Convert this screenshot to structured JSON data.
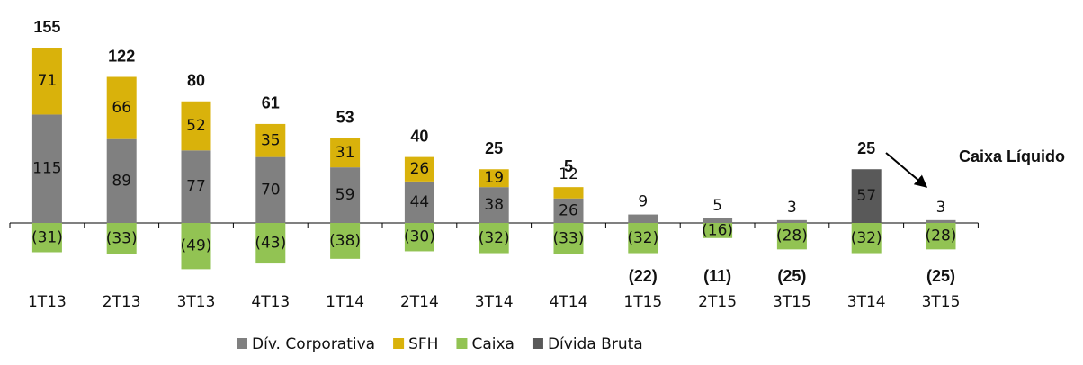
{
  "chart_data": {
    "type": "stacked_bar",
    "categories": [
      "1T13",
      "2T13",
      "3T13",
      "4T13",
      "1T14",
      "2T14",
      "3T14",
      "4T14",
      "1T15",
      "2T15",
      "3T15",
      "3T14",
      "3T15"
    ],
    "series": [
      {
        "name": "Dív. Corporativa",
        "color": "#808080",
        "values": [
          115,
          89,
          77,
          70,
          59,
          44,
          38,
          26,
          9,
          5,
          3,
          null,
          3
        ]
      },
      {
        "name": "SFH",
        "color": "#d9b20b",
        "values": [
          71,
          66,
          52,
          35,
          31,
          26,
          19,
          12,
          null,
          null,
          null,
          null,
          null
        ]
      },
      {
        "name": "Caixa",
        "color": "#92c353",
        "values": [
          -31,
          -33,
          -49,
          -43,
          -38,
          -30,
          -32,
          -33,
          -32,
          -16,
          -28,
          -32,
          -28
        ],
        "value_labels": [
          "(31)",
          "(33)",
          "(49)",
          "(43)",
          "(38)",
          "(30)",
          "(32)",
          "(33)",
          "(32)",
          "(16)",
          "(28)",
          "(32)",
          "(28)"
        ]
      },
      {
        "name": "Dívida Bruta",
        "color": "#595959",
        "values": [
          null,
          null,
          null,
          null,
          null,
          null,
          null,
          null,
          null,
          null,
          null,
          57,
          null
        ]
      }
    ],
    "totals": {
      "values": [
        155,
        122,
        80,
        61,
        53,
        40,
        25,
        5,
        -22,
        -11,
        -25,
        25,
        -25
      ],
      "value_labels": [
        "155",
        "122",
        "80",
        "61",
        "53",
        "40",
        "25",
        "5",
        "(22)",
        "(11)",
        "(25)",
        "25",
        "(25)"
      ]
    },
    "annotation": "Caixa Líquido"
  }
}
